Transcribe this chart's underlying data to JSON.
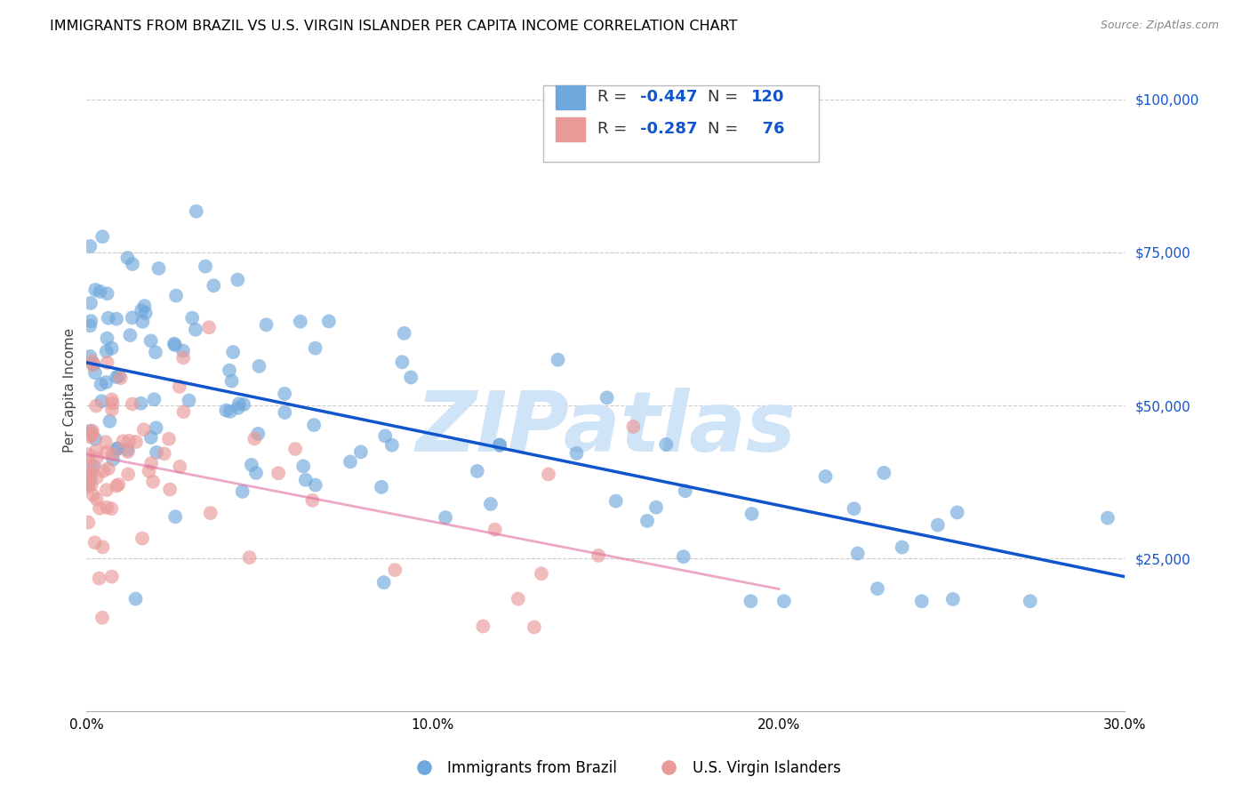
{
  "title": "IMMIGRANTS FROM BRAZIL VS U.S. VIRGIN ISLANDER PER CAPITA INCOME CORRELATION CHART",
  "source": "Source: ZipAtlas.com",
  "ylabel": "Per Capita Income",
  "xlim": [
    0,
    0.3
  ],
  "ylim": [
    0,
    105000
  ],
  "xticks": [
    0.0,
    0.05,
    0.1,
    0.15,
    0.2,
    0.25,
    0.3
  ],
  "xticklabels": [
    "0.0%",
    "",
    "10.0%",
    "",
    "20.0%",
    "",
    "30.0%"
  ],
  "ytick_positions": [
    0,
    25000,
    50000,
    75000,
    100000
  ],
  "ytick_labels": [
    "",
    "$25,000",
    "$50,000",
    "$75,000",
    "$100,000"
  ],
  "brazil_color": "#6fa8dc",
  "virgin_color": "#ea9999",
  "brazil_line_color": "#1155cc",
  "virgin_line_color": "#e06fa0",
  "watermark_color": "#d0e4f7",
  "R_brazil": -0.447,
  "N_brazil": 120,
  "R_virgin": -0.287,
  "N_virgin": 76,
  "legend_label_brazil": "Immigrants from Brazil",
  "legend_label_virgin": "U.S. Virgin Islanders",
  "brazil_trend_x": [
    0.0,
    0.3
  ],
  "brazil_trend_y": [
    57000,
    22000
  ],
  "virgin_trend_x": [
    0.0,
    0.2
  ],
  "virgin_trend_y": [
    42000,
    20000
  ]
}
